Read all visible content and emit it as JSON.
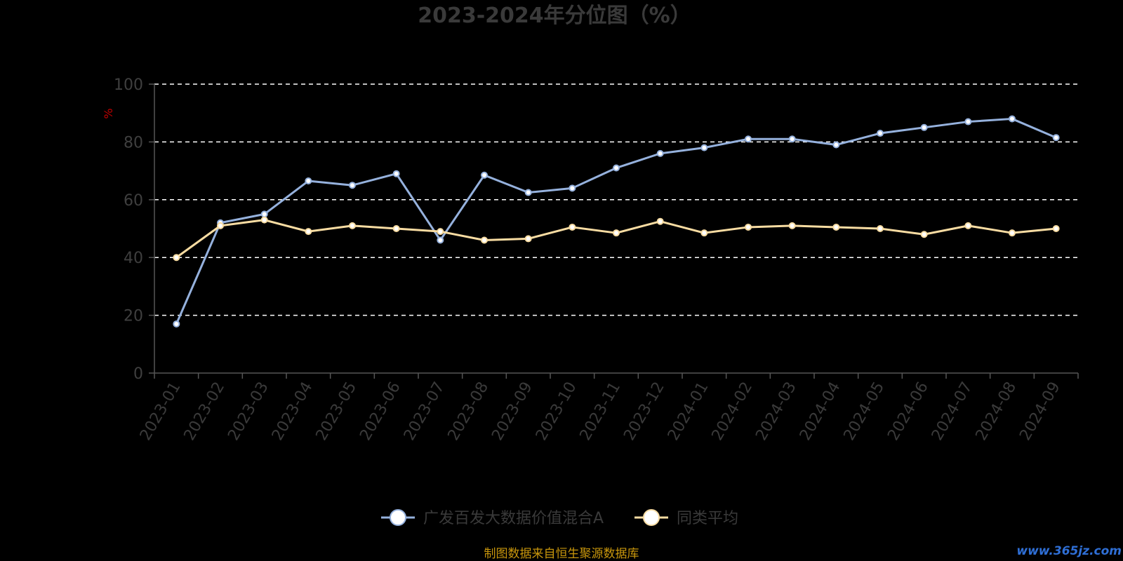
{
  "chart_data": {
    "type": "line",
    "title": "2023-2024年分位图（%）",
    "ylabel": "%",
    "xlabel": "",
    "ylim": [
      0,
      100
    ],
    "yticks": [
      0,
      20,
      40,
      60,
      80,
      100
    ],
    "grid": true,
    "legend_position": "bottom",
    "categories": [
      "2023-01",
      "2023-02",
      "2023-03",
      "2023-04",
      "2023-05",
      "2023-06",
      "2023-07",
      "2023-08",
      "2023-09",
      "2023-10",
      "2023-11",
      "2023-12",
      "2024-01",
      "2024-02",
      "2024-03",
      "2024-04",
      "2024-05",
      "2024-06",
      "2024-07",
      "2024-08",
      "2024-09"
    ],
    "series": [
      {
        "name": "广发百发大数据价值混合A",
        "color": "#95b1dd",
        "values": [
          17,
          52,
          55,
          66.5,
          65,
          69,
          46,
          68.5,
          62.5,
          64,
          71,
          76,
          78,
          81,
          81,
          79,
          83,
          85,
          87,
          88,
          81.5
        ]
      },
      {
        "name": "同类平均",
        "color": "#f8dca2",
        "values": [
          40,
          51,
          53,
          49,
          51,
          50,
          49,
          46,
          46.5,
          50.5,
          48.5,
          52.5,
          48.5,
          50.5,
          51,
          50.5,
          50,
          48,
          51,
          48.5,
          50
        ]
      }
    ]
  },
  "footer": {
    "source": "制图数据来自恒生聚源数据库",
    "watermark": "www.365jz.com"
  }
}
